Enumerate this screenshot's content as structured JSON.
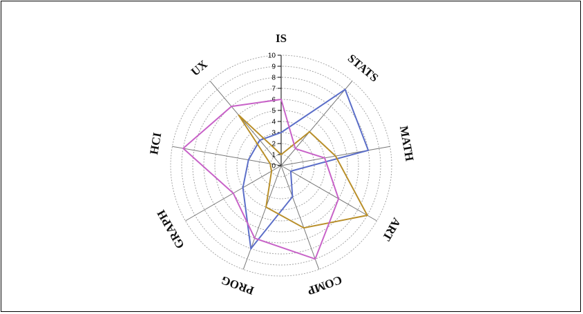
{
  "chart_data": {
    "type": "radar",
    "axes": [
      "IS",
      "STATS",
      "MATH",
      "ART",
      "COMP",
      "PROG",
      "GRAPH",
      "HCI",
      "UX"
    ],
    "ticks": [
      "0",
      "1",
      "2",
      "3",
      "4",
      "5",
      "6",
      "7",
      "8",
      "9",
      "10"
    ],
    "range": [
      0,
      10
    ],
    "grid": true,
    "series": [
      {
        "color": "#5b6ec8",
        "values": [
          3,
          9,
          8,
          1,
          3,
          8,
          4,
          3,
          3
        ]
      },
      {
        "color": "#b98f2a",
        "values": [
          1,
          4,
          5,
          9,
          6,
          4,
          1,
          1,
          6
        ]
      },
      {
        "color": "#c862c8",
        "values": [
          6,
          2,
          4,
          6,
          9,
          7,
          5,
          9,
          7
        ]
      }
    ]
  }
}
